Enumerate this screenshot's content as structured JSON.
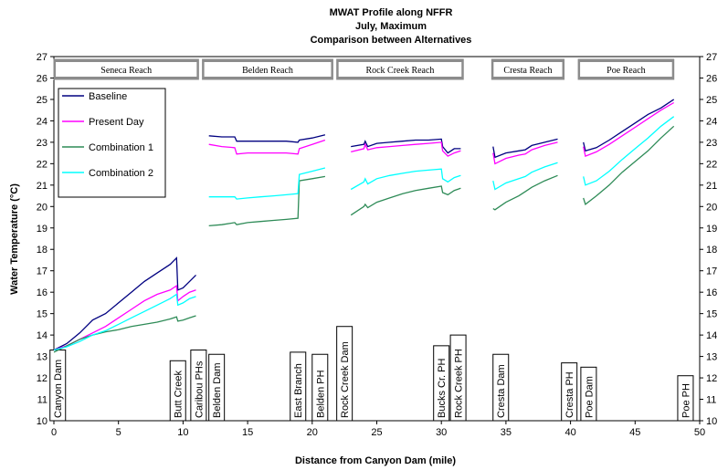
{
  "chart_data": {
    "type": "line",
    "title": [
      "MWAT Profile along NFFR",
      "July, Maximum",
      "Comparison between Alternatives"
    ],
    "xlabel": "Distance from Canyon Dam (mile)",
    "ylabel": "Water Temperature (°C)",
    "xlim": [
      0,
      50
    ],
    "ylim": [
      10,
      27
    ],
    "xticks": [
      0,
      5,
      10,
      15,
      20,
      25,
      30,
      35,
      40,
      45,
      50
    ],
    "yticks": [
      10,
      11,
      12,
      13,
      14,
      15,
      16,
      17,
      18,
      19,
      20,
      21,
      22,
      23,
      24,
      25,
      26,
      27
    ],
    "grid": false,
    "legend_position": "top-left",
    "reaches": [
      {
        "label": "Seneca Reach",
        "x0": 0,
        "x1": 11.2
      },
      {
        "label": "Belden Reach",
        "x0": 11.5,
        "x1": 21.6
      },
      {
        "label": "Rock Creek Reach",
        "x0": 21.9,
        "x1": 31.7
      },
      {
        "label": "Cresta Reach",
        "x0": 33.9,
        "x1": 39.5
      },
      {
        "label": "Poe Reach",
        "x0": 40.6,
        "x1": 48
      }
    ],
    "locations": [
      {
        "label": "Canyon Dam",
        "x": 0.3,
        "top": 13.3
      },
      {
        "label": "Butt Creek",
        "x": 9.6,
        "top": 12.8
      },
      {
        "label": "Caribou PHs",
        "x": 11.2,
        "top": 13.3
      },
      {
        "label": "Belden Dam",
        "x": 12.6,
        "top": 13.1
      },
      {
        "label": "East Branch",
        "x": 18.9,
        "top": 13.2
      },
      {
        "label": "Belden PH",
        "x": 20.6,
        "top": 13.1
      },
      {
        "label": "Rock Creek Dam",
        "x": 22.5,
        "top": 14.4
      },
      {
        "label": "Bucks Cr. PH",
        "x": 30.0,
        "top": 13.5
      },
      {
        "label": "Rock Creek PH",
        "x": 31.3,
        "top": 14.0
      },
      {
        "label": "Cresta Dam",
        "x": 34.6,
        "top": 13.1
      },
      {
        "label": "Cresta PH",
        "x": 39.9,
        "top": 12.7
      },
      {
        "label": "Poe Dam",
        "x": 41.4,
        "top": 12.5
      },
      {
        "label": "Poe PH",
        "x": 48.9,
        "top": 12.1
      }
    ],
    "series": [
      {
        "name": "Baseline",
        "color": "#000080",
        "segments": [
          [
            [
              0,
              13.3
            ],
            [
              1,
              13.6
            ],
            [
              2,
              14.1
            ],
            [
              3,
              14.7
            ],
            [
              4,
              15.0
            ],
            [
              5,
              15.5
            ],
            [
              6,
              16.0
            ],
            [
              7,
              16.5
            ],
            [
              8,
              16.9
            ],
            [
              9,
              17.3
            ],
            [
              9.5,
              17.6
            ],
            [
              9.6,
              16.1
            ],
            [
              10,
              16.2
            ],
            [
              10.5,
              16.5
            ],
            [
              11,
              16.8
            ]
          ],
          [
            [
              12,
              23.3
            ],
            [
              13,
              23.25
            ],
            [
              14,
              23.25
            ],
            [
              14.15,
              23.05
            ],
            [
              15,
              23.05
            ],
            [
              16,
              23.05
            ],
            [
              17,
              23.05
            ],
            [
              18,
              23.05
            ],
            [
              18.9,
              23.0
            ],
            [
              19,
              23.1
            ],
            [
              20,
              23.2
            ],
            [
              21,
              23.35
            ]
          ],
          [
            [
              23,
              22.8
            ],
            [
              24,
              22.9
            ],
            [
              24.1,
              23.05
            ],
            [
              24.3,
              22.8
            ],
            [
              25,
              22.95
            ],
            [
              26,
              23.0
            ],
            [
              27,
              23.05
            ],
            [
              28,
              23.1
            ],
            [
              29,
              23.1
            ],
            [
              30,
              23.15
            ],
            [
              30.1,
              22.8
            ],
            [
              30.5,
              22.5
            ],
            [
              31,
              22.7
            ],
            [
              31.5,
              22.7
            ]
          ],
          [
            [
              34,
              22.8
            ],
            [
              34.15,
              22.3
            ],
            [
              35,
              22.5
            ],
            [
              36,
              22.6
            ],
            [
              36.5,
              22.65
            ],
            [
              37,
              22.85
            ],
            [
              38,
              23.0
            ],
            [
              39,
              23.15
            ]
          ],
          [
            [
              41,
              23.0
            ],
            [
              41.15,
              22.6
            ],
            [
              42,
              22.75
            ],
            [
              43,
              23.1
            ],
            [
              44,
              23.5
            ],
            [
              45,
              23.9
            ],
            [
              46,
              24.3
            ],
            [
              47,
              24.6
            ],
            [
              48,
              25.0
            ]
          ]
        ]
      },
      {
        "name": "Present Day",
        "color": "#ff00ff",
        "segments": [
          [
            [
              0,
              13.3
            ],
            [
              1,
              13.5
            ],
            [
              2,
              13.8
            ],
            [
              3,
              14.1
            ],
            [
              4,
              14.4
            ],
            [
              5,
              14.8
            ],
            [
              6,
              15.2
            ],
            [
              7,
              15.6
            ],
            [
              8,
              15.9
            ],
            [
              9,
              16.1
            ],
            [
              9.5,
              16.3
            ],
            [
              9.6,
              15.6
            ],
            [
              10,
              15.8
            ],
            [
              10.5,
              16.0
            ],
            [
              11,
              16.1
            ]
          ],
          [
            [
              12,
              22.9
            ],
            [
              13,
              22.8
            ],
            [
              14,
              22.75
            ],
            [
              14.15,
              22.45
            ],
            [
              15,
              22.5
            ],
            [
              16,
              22.5
            ],
            [
              17,
              22.5
            ],
            [
              18,
              22.5
            ],
            [
              18.9,
              22.45
            ],
            [
              19,
              22.7
            ],
            [
              20,
              22.9
            ],
            [
              21,
              23.1
            ]
          ],
          [
            [
              23,
              22.55
            ],
            [
              24,
              22.7
            ],
            [
              24.1,
              22.9
            ],
            [
              24.3,
              22.65
            ],
            [
              25,
              22.75
            ],
            [
              26,
              22.8
            ],
            [
              27,
              22.85
            ],
            [
              28,
              22.9
            ],
            [
              29,
              22.95
            ],
            [
              30,
              23.0
            ],
            [
              30.1,
              22.6
            ],
            [
              30.5,
              22.35
            ],
            [
              31,
              22.5
            ],
            [
              31.5,
              22.6
            ]
          ],
          [
            [
              34,
              22.5
            ],
            [
              34.15,
              22.0
            ],
            [
              35,
              22.25
            ],
            [
              36,
              22.4
            ],
            [
              36.5,
              22.45
            ],
            [
              37,
              22.65
            ],
            [
              38,
              22.85
            ],
            [
              39,
              23.0
            ]
          ],
          [
            [
              41,
              22.8
            ],
            [
              41.15,
              22.35
            ],
            [
              42,
              22.55
            ],
            [
              43,
              22.9
            ],
            [
              44,
              23.3
            ],
            [
              45,
              23.7
            ],
            [
              46,
              24.1
            ],
            [
              47,
              24.5
            ],
            [
              48,
              24.85
            ]
          ]
        ]
      },
      {
        "name": "Combination 1",
        "color": "#2e8b57",
        "segments": [
          [
            [
              0,
              13.2
            ],
            [
              1,
              13.5
            ],
            [
              2,
              13.8
            ],
            [
              3,
              14.0
            ],
            [
              4,
              14.15
            ],
            [
              5,
              14.25
            ],
            [
              6,
              14.4
            ],
            [
              7,
              14.5
            ],
            [
              8,
              14.6
            ],
            [
              9,
              14.75
            ],
            [
              9.5,
              14.85
            ],
            [
              9.6,
              14.65
            ],
            [
              10,
              14.7
            ],
            [
              10.5,
              14.8
            ],
            [
              11,
              14.9
            ]
          ],
          [
            [
              12,
              19.1
            ],
            [
              13,
              19.15
            ],
            [
              14,
              19.25
            ],
            [
              14.15,
              19.15
            ],
            [
              15,
              19.25
            ],
            [
              16,
              19.3
            ],
            [
              17,
              19.35
            ],
            [
              18,
              19.4
            ],
            [
              18.9,
              19.45
            ],
            [
              19,
              21.2
            ],
            [
              20,
              21.3
            ],
            [
              21,
              21.4
            ]
          ],
          [
            [
              23,
              19.6
            ],
            [
              24,
              20.0
            ],
            [
              24.1,
              20.1
            ],
            [
              24.3,
              19.95
            ],
            [
              25,
              20.2
            ],
            [
              26,
              20.4
            ],
            [
              27,
              20.6
            ],
            [
              28,
              20.75
            ],
            [
              29,
              20.85
            ],
            [
              30,
              20.95
            ],
            [
              30.1,
              20.65
            ],
            [
              30.5,
              20.55
            ],
            [
              31,
              20.75
            ],
            [
              31.5,
              20.85
            ]
          ],
          [
            [
              34,
              19.9
            ],
            [
              34.15,
              19.85
            ],
            [
              35,
              20.2
            ],
            [
              36,
              20.5
            ],
            [
              36.5,
              20.7
            ],
            [
              37,
              20.9
            ],
            [
              38,
              21.2
            ],
            [
              39,
              21.45
            ]
          ],
          [
            [
              41,
              20.4
            ],
            [
              41.15,
              20.1
            ],
            [
              42,
              20.5
            ],
            [
              43,
              21.0
            ],
            [
              44,
              21.6
            ],
            [
              45,
              22.1
            ],
            [
              46,
              22.6
            ],
            [
              47,
              23.2
            ],
            [
              48,
              23.75
            ]
          ]
        ]
      },
      {
        "name": "Combination 2",
        "color": "#00ffff",
        "segments": [
          [
            [
              0,
              13.3
            ],
            [
              1,
              13.45
            ],
            [
              2,
              13.7
            ],
            [
              3,
              14.0
            ],
            [
              4,
              14.2
            ],
            [
              5,
              14.5
            ],
            [
              6,
              14.8
            ],
            [
              7,
              15.1
            ],
            [
              8,
              15.4
            ],
            [
              9,
              15.7
            ],
            [
              9.5,
              15.9
            ],
            [
              9.6,
              15.4
            ],
            [
              10,
              15.5
            ],
            [
              10.5,
              15.7
            ],
            [
              11,
              15.8
            ]
          ],
          [
            [
              12,
              20.45
            ],
            [
              13,
              20.45
            ],
            [
              14,
              20.45
            ],
            [
              14.15,
              20.35
            ],
            [
              15,
              20.4
            ],
            [
              16,
              20.45
            ],
            [
              17,
              20.5
            ],
            [
              18,
              20.55
            ],
            [
              18.9,
              20.6
            ],
            [
              19,
              21.5
            ],
            [
              20,
              21.65
            ],
            [
              21,
              21.8
            ]
          ],
          [
            [
              23,
              20.8
            ],
            [
              24,
              21.15
            ],
            [
              24.1,
              21.3
            ],
            [
              24.3,
              21.05
            ],
            [
              25,
              21.3
            ],
            [
              26,
              21.45
            ],
            [
              27,
              21.55
            ],
            [
              28,
              21.65
            ],
            [
              29,
              21.7
            ],
            [
              30,
              21.75
            ],
            [
              30.1,
              21.3
            ],
            [
              30.5,
              21.15
            ],
            [
              31,
              21.35
            ],
            [
              31.5,
              21.45
            ]
          ],
          [
            [
              34,
              21.2
            ],
            [
              34.15,
              20.8
            ],
            [
              35,
              21.1
            ],
            [
              36,
              21.3
            ],
            [
              36.5,
              21.4
            ],
            [
              37,
              21.6
            ],
            [
              38,
              21.85
            ],
            [
              39,
              22.05
            ]
          ],
          [
            [
              41,
              21.4
            ],
            [
              41.15,
              21.0
            ],
            [
              42,
              21.2
            ],
            [
              43,
              21.65
            ],
            [
              44,
              22.2
            ],
            [
              45,
              22.7
            ],
            [
              46,
              23.2
            ],
            [
              47,
              23.75
            ],
            [
              48,
              24.2
            ]
          ]
        ]
      }
    ]
  }
}
